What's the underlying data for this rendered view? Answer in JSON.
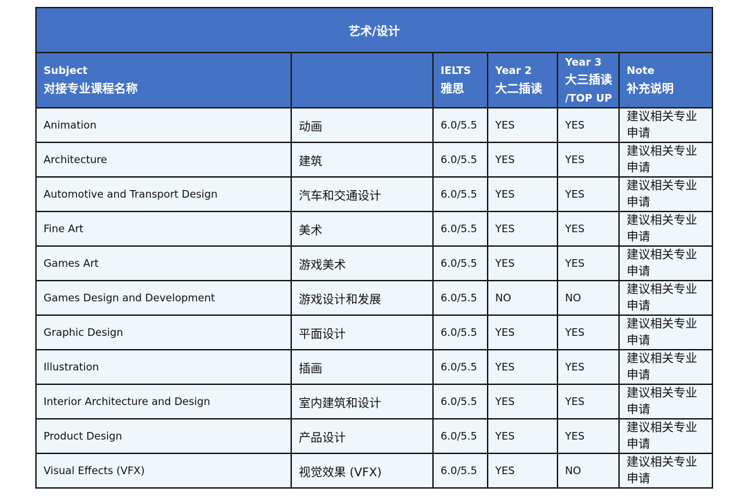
{
  "table": {
    "title": "艺术/设计",
    "headers": {
      "subject_en": "Subject",
      "subject_cn": "对接专业课程名称",
      "chinese_name": "",
      "ielts_en": "IELTS",
      "ielts_cn": "雅思",
      "year2_en": "Year 2",
      "year2_cn": "大二插读",
      "year3_en": "Year 3",
      "year3_cn": "大三插读",
      "year3_topup": "/TOP UP",
      "note_en": "Note",
      "note_cn": "补充说明"
    },
    "rows": [
      {
        "subject": "Animation",
        "chinese": "动画",
        "ielts": "6.0/5.5",
        "year2": "YES",
        "year3": "YES",
        "note": "建议相关专业申请"
      },
      {
        "subject": "Architecture",
        "chinese": "建筑",
        "ielts": "6.0/5.5",
        "year2": "YES",
        "year3": "YES",
        "note": "建议相关专业申请"
      },
      {
        "subject": "Automotive and Transport Design",
        "chinese": "汽车和交通设计",
        "ielts": "6.0/5.5",
        "year2": "YES",
        "year3": "YES",
        "note": "建议相关专业申请"
      },
      {
        "subject": "Fine Art",
        "chinese": "美术",
        "ielts": "6.0/5.5",
        "year2": "YES",
        "year3": "YES",
        "note": "建议相关专业申请"
      },
      {
        "subject": "Games Art",
        "chinese": "游戏美术",
        "ielts": "6.0/5.5",
        "year2": "YES",
        "year3": "YES",
        "note": "建议相关专业申请"
      },
      {
        "subject": "Games Design and Development",
        "chinese": "游戏设计和发展",
        "ielts": "6.0/5.5",
        "year2": "NO",
        "year3": "NO",
        "note": "建议相关专业申请"
      },
      {
        "subject": "Graphic Design",
        "chinese": "平面设计",
        "ielts": "6.0/5.5",
        "year2": "YES",
        "year3": "YES",
        "note": "建议相关专业申请"
      },
      {
        "subject": "Illustration",
        "chinese": "插画",
        "ielts": "6.0/5.5",
        "year2": "YES",
        "year3": "YES",
        "note": "建议相关专业申请"
      },
      {
        "subject": "Interior Architecture and Design",
        "chinese": "室内建筑和设计",
        "ielts": "6.0/5.5",
        "year2": "YES",
        "year3": "YES",
        "note": "建议相关专业申请"
      },
      {
        "subject": "Product Design",
        "chinese": "产品设计",
        "ielts": "6.0/5.5",
        "year2": "YES",
        "year3": "YES",
        "note": "建议相关专业申请"
      },
      {
        "subject": "Visual Effects (VFX)",
        "chinese": "视觉效果 (VFX)",
        "ielts": "6.0/5.5",
        "year2": "YES",
        "year3": "NO",
        "note": "建议相关专业申请"
      }
    ]
  },
  "colors": {
    "header_bg": "#4472c4",
    "header_text": "#ffffff",
    "row_bg": "#eef7fa",
    "border": "#1c1c1c"
  }
}
